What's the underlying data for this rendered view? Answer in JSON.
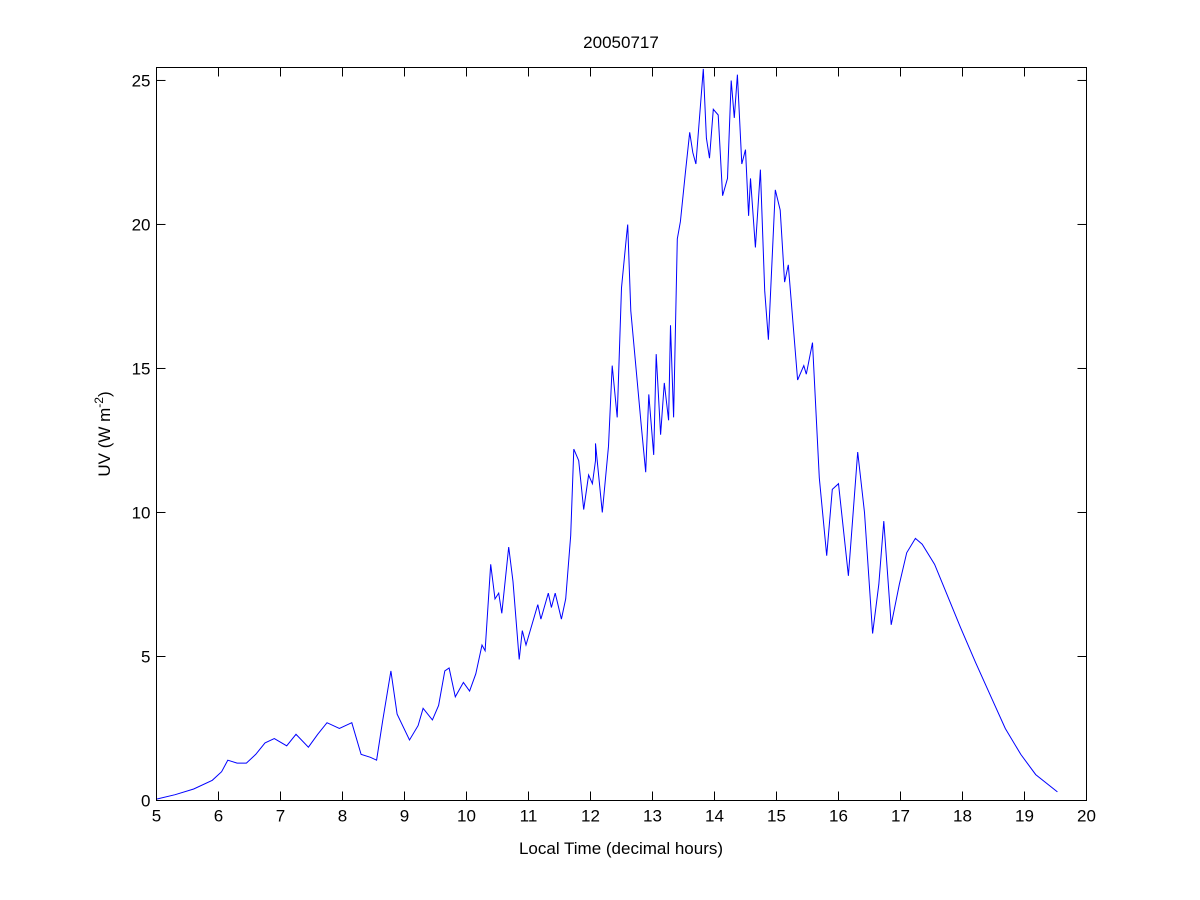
{
  "chart_data": {
    "type": "line",
    "title": "20050717",
    "xlabel": "Local Time (decimal hours)",
    "ylabel_main": "UV (W m",
    "ylabel_sup": "-2",
    "ylabel_close": ")",
    "xlim": [
      5,
      20
    ],
    "ylim": [
      0,
      25.45
    ],
    "xticks": [
      "5",
      "6",
      "7",
      "8",
      "9",
      "10",
      "11",
      "12",
      "13",
      "14",
      "15",
      "16",
      "17",
      "18",
      "19",
      "20"
    ],
    "yticks": [
      "0",
      "5",
      "10",
      "15",
      "20",
      "25"
    ],
    "grid": false,
    "line_color": "#0000ff",
    "series": [
      {
        "name": "UV",
        "x": [
          5.0,
          5.3,
          5.6,
          5.9,
          6.05,
          6.15,
          6.3,
          6.45,
          6.6,
          6.75,
          6.9,
          7.1,
          7.25,
          7.45,
          7.6,
          7.75,
          7.95,
          8.15,
          8.3,
          8.45,
          8.55,
          8.65,
          8.78,
          8.88,
          9.08,
          9.22,
          9.3,
          9.45,
          9.55,
          9.65,
          9.72,
          9.82,
          9.95,
          10.05,
          10.15,
          10.25,
          10.3,
          10.39,
          10.46,
          10.52,
          10.57,
          10.68,
          10.75,
          10.85,
          10.9,
          10.96,
          11.15,
          11.2,
          11.32,
          11.37,
          11.43,
          11.53,
          11.6,
          11.68,
          11.73,
          11.81,
          11.89,
          11.97,
          12.03,
          12.08,
          12.08,
          12.19,
          12.29,
          12.35,
          12.43,
          12.5,
          12.58,
          12.6,
          12.65,
          12.82,
          12.89,
          12.94,
          13.02,
          13.06,
          13.13,
          13.19,
          13.26,
          13.29,
          13.34,
          13.4,
          13.45,
          13.53,
          13.6,
          13.65,
          13.7,
          13.82,
          13.87,
          13.92,
          13.98,
          14.06,
          14.13,
          14.21,
          14.27,
          14.32,
          14.37,
          14.44,
          14.5,
          14.55,
          14.58,
          14.66,
          14.74,
          14.81,
          14.87,
          14.98,
          15.06,
          15.13,
          15.19,
          15.34,
          15.44,
          15.48,
          15.58,
          15.69,
          15.81,
          15.9,
          16.0,
          16.16,
          16.31,
          16.42,
          16.55,
          16.65,
          16.73,
          16.85,
          16.98,
          17.1,
          17.24,
          17.35,
          17.55,
          17.74,
          17.97,
          18.21,
          18.48,
          18.69,
          18.94,
          19.18,
          19.53
        ],
        "y": [
          0.05,
          0.2,
          0.4,
          0.7,
          1.0,
          1.4,
          1.3,
          1.3,
          1.6,
          2.0,
          2.15,
          1.9,
          2.3,
          1.85,
          2.3,
          2.7,
          2.5,
          2.7,
          1.6,
          1.5,
          1.4,
          2.8,
          4.5,
          3.0,
          2.1,
          2.6,
          3.2,
          2.8,
          3.3,
          4.5,
          4.6,
          3.6,
          4.1,
          3.8,
          4.4,
          5.4,
          5.2,
          8.2,
          7.0,
          7.2,
          6.5,
          8.8,
          7.6,
          4.9,
          5.9,
          5.4,
          6.8,
          6.3,
          7.2,
          6.7,
          7.2,
          6.3,
          7.0,
          9.2,
          12.2,
          11.8,
          10.1,
          11.3,
          11.0,
          11.8,
          12.4,
          10.0,
          12.3,
          15.1,
          13.3,
          17.8,
          19.6,
          20.0,
          17.0,
          13.0,
          11.4,
          14.1,
          12.0,
          15.5,
          12.7,
          14.5,
          13.2,
          16.5,
          13.3,
          19.5,
          20.1,
          21.8,
          23.2,
          22.5,
          22.1,
          25.4,
          23.0,
          22.3,
          24.0,
          23.8,
          21.0,
          21.6,
          25.0,
          23.7,
          25.2,
          22.1,
          22.6,
          20.3,
          21.6,
          19.2,
          21.9,
          17.7,
          16.0,
          21.2,
          20.5,
          18.0,
          18.6,
          14.6,
          15.1,
          14.8,
          15.9,
          11.2,
          8.5,
          10.8,
          11.0,
          7.8,
          12.1,
          10.0,
          5.8,
          7.5,
          9.7,
          6.1,
          7.5,
          8.6,
          9.1,
          8.9,
          8.2,
          7.2,
          6.0,
          4.8,
          3.5,
          2.5,
          1.6,
          0.9,
          0.3
        ]
      }
    ]
  }
}
